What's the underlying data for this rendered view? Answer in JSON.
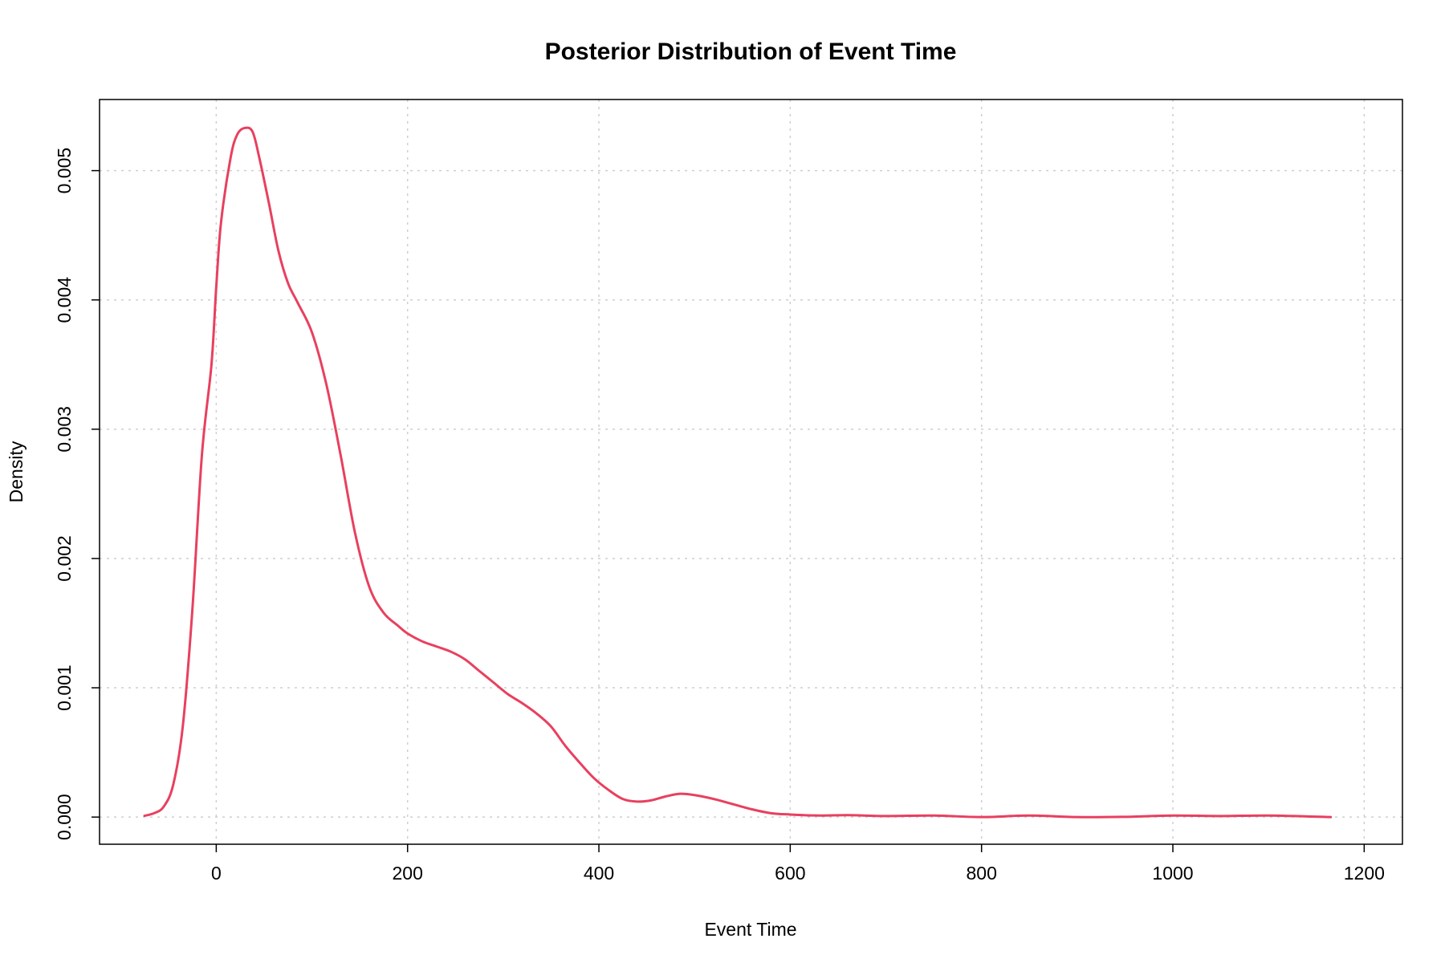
{
  "chart_data": {
    "type": "line",
    "title": "Posterior Distribution of Event Time",
    "xlabel": "Event Time",
    "ylabel": "Density",
    "xlim": [
      -122,
      1240
    ],
    "ylim": [
      -0.00021,
      0.00555
    ],
    "xticks": [
      0,
      200,
      400,
      600,
      800,
      1000,
      1200
    ],
    "xtick_labels": [
      "0",
      "200",
      "400",
      "600",
      "800",
      "1000",
      "1200"
    ],
    "yticks": [
      0,
      0.001,
      0.002,
      0.003,
      0.004,
      0.005
    ],
    "ytick_labels": [
      "0.000",
      "0.001",
      "0.002",
      "0.003",
      "0.004",
      "0.005"
    ],
    "grid": true,
    "series": [
      {
        "color": "#e8405f",
        "x": [
          -75,
          -65,
          -55,
          -45,
          -35,
          -25,
          -15,
          -5,
          0,
          5,
          15,
          22,
          30,
          38,
          45,
          55,
          65,
          75,
          85,
          100,
          115,
          130,
          145,
          160,
          175,
          190,
          200,
          215,
          230,
          245,
          260,
          275,
          290,
          305,
          320,
          335,
          350,
          365,
          380,
          395,
          410,
          425,
          440,
          455,
          470,
          485,
          500,
          520,
          540,
          560,
          580,
          600,
          630,
          660,
          700,
          750,
          800,
          850,
          900,
          950,
          1000,
          1050,
          1100,
          1165
        ],
        "y": [
          1e-05,
          3e-05,
          8e-05,
          0.00025,
          0.0007,
          0.0016,
          0.0028,
          0.0035,
          0.0041,
          0.0046,
          0.0051,
          0.00528,
          0.00533,
          0.0053,
          0.0051,
          0.00475,
          0.00438,
          0.00413,
          0.00398,
          0.00375,
          0.00335,
          0.0028,
          0.0022,
          0.00178,
          0.00158,
          0.00148,
          0.00142,
          0.00136,
          0.00132,
          0.00128,
          0.00122,
          0.00113,
          0.00104,
          0.00095,
          0.00088,
          0.0008,
          0.0007,
          0.00055,
          0.00042,
          0.0003,
          0.00021,
          0.00014,
          0.00012,
          0.00013,
          0.00016,
          0.00018,
          0.00017,
          0.00014,
          0.0001,
          6e-05,
          3e-05,
          2e-05,
          1.2e-05,
          1.5e-05,
          8e-06,
          1.2e-05,
          0.0,
          1.2e-05,
          0.0,
          2e-06,
          1.2e-05,
          8e-06,
          1.2e-05,
          0.0
        ]
      }
    ]
  }
}
